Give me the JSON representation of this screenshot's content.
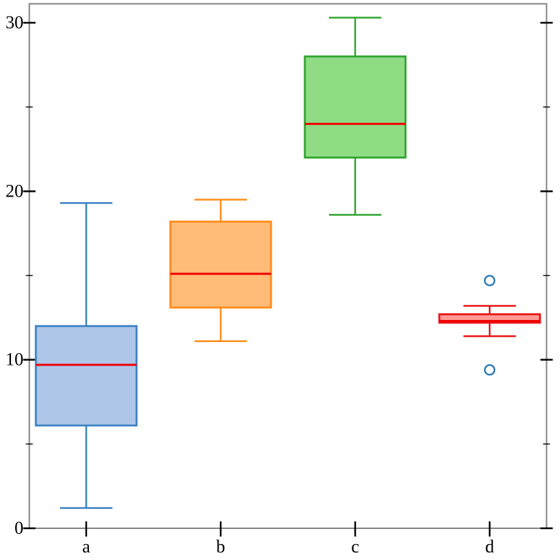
{
  "figure": {
    "title": "",
    "background_color": "#ffffff",
    "border_color": "#828282"
  },
  "chart_data": {
    "type": "boxplot",
    "title": "",
    "xlabel": "",
    "ylabel": "",
    "categories": [
      "a",
      "b",
      "c",
      "d"
    ],
    "y_axis": {
      "min": 0,
      "max": 31.1,
      "major_ticks": [
        0,
        10,
        20,
        30
      ],
      "major_tick_labels": [
        "0",
        "10",
        "20",
        "30"
      ],
      "minor_ticks": [
        5,
        15,
        25
      ],
      "grid": false
    },
    "legend": {
      "visible": false
    },
    "median_color": "#f00000",
    "outlier_color": "#2878b8",
    "tick_color": "#000000",
    "series": [
      {
        "name": "a",
        "whisker_low": 1.2,
        "q1": 6.1,
        "median": 9.7,
        "q3": 12.0,
        "whisker_high": 19.3,
        "outliers": [],
        "stroke": "#3b82c4",
        "fill": "#aec6e8"
      },
      {
        "name": "b",
        "whisker_low": 11.1,
        "q1": 13.1,
        "median": 15.1,
        "q3": 18.2,
        "whisker_high": 19.5,
        "outliers": [],
        "stroke": "#ff8c19",
        "fill": "#ffbb78"
      },
      {
        "name": "c",
        "whisker_low": 18.6,
        "q1": 22.0,
        "median": 24.0,
        "q3": 28.0,
        "whisker_high": 30.3,
        "outliers": [],
        "stroke": "#2fa42e",
        "fill": "#8fdc85"
      },
      {
        "name": "d",
        "whisker_low": 11.4,
        "q1": 12.2,
        "median": 12.3,
        "q3": 12.7,
        "whisker_high": 13.2,
        "outliers": [
          14.7,
          9.4
        ],
        "stroke": "#e81416",
        "fill": "#ff9a94"
      }
    ]
  }
}
